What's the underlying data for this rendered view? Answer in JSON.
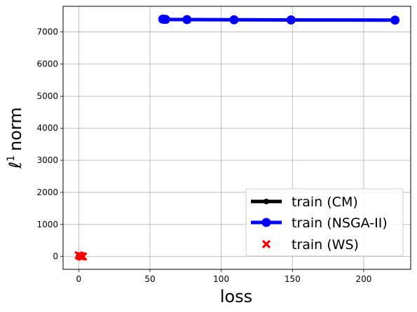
{
  "chart_data": {
    "type": "line",
    "xlabel": "loss",
    "ylabel": "norm",
    "ylabel_prefix": "ℓ",
    "ylabel_sup": "1",
    "xlim": [
      -11,
      233
    ],
    "ylim": [
      -400,
      7800
    ],
    "xticks": [
      0,
      50,
      100,
      150,
      200
    ],
    "yticks": [
      0,
      1000,
      2000,
      3000,
      4000,
      5000,
      6000,
      7000
    ],
    "grid": true,
    "legend_position": "lower right",
    "series": [
      {
        "name": "train (CM)",
        "color": "#000000",
        "marker": "circle",
        "x": [
          0.0,
          0.4,
          0.8,
          1.2,
          1.8
        ],
        "y": [
          10,
          6,
          4,
          3,
          2
        ]
      },
      {
        "name": "train (NSGA-II)",
        "color": "#0000ff",
        "marker": "circle",
        "x": [
          59,
          60,
          61,
          76,
          109,
          149,
          222
        ],
        "y": [
          7400,
          7395,
          7390,
          7385,
          7380,
          7375,
          7370
        ]
      },
      {
        "name": "train (WS)",
        "color": "#ff0000",
        "marker": "x",
        "x": [
          0,
          0.6,
          1.2,
          1.8,
          2.4,
          3.0
        ],
        "y": [
          40,
          20,
          8,
          4,
          2,
          1
        ]
      }
    ]
  }
}
